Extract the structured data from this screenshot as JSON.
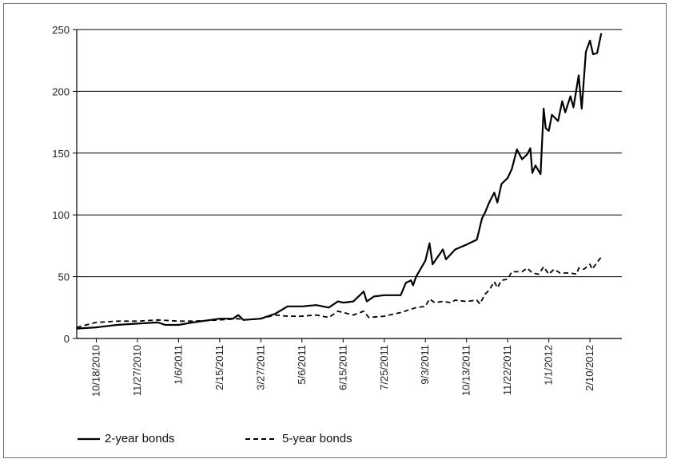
{
  "chart_data": {
    "type": "line",
    "title": "",
    "xlabel": "",
    "ylabel": "",
    "ylim": [
      0,
      250
    ],
    "yticks": [
      0,
      50,
      100,
      150,
      200,
      250
    ],
    "grid": "horizontal",
    "legend_placement": "bottom-left",
    "x_start": "2010-09-29",
    "x_end": "2012-03-12",
    "xtick_labels": [
      "10/18/2010",
      "11/27/2010",
      "1/6/2011",
      "2/15/2011",
      "3/27/2011",
      "5/6/2011",
      "6/15/2011",
      "7/25/2011",
      "9/3/2011",
      "10/13/2011",
      "11/22/2011",
      "1/1/2012",
      "2/10/2012"
    ],
    "xtick_dates": [
      "2010-10-18",
      "2010-11-27",
      "2011-01-06",
      "2011-02-15",
      "2011-03-27",
      "2011-05-06",
      "2011-06-15",
      "2011-07-25",
      "2011-09-03",
      "2011-10-13",
      "2011-11-22",
      "2012-01-01",
      "2012-02-10"
    ],
    "series": [
      {
        "name": "2-year bonds",
        "style": "solid",
        "color": "#000000",
        "points": [
          [
            "2010-09-29",
            8
          ],
          [
            "2010-10-18",
            9
          ],
          [
            "2010-11-07",
            11
          ],
          [
            "2010-11-27",
            12
          ],
          [
            "2010-12-17",
            13
          ],
          [
            "2010-12-24",
            11
          ],
          [
            "2011-01-06",
            11
          ],
          [
            "2011-01-20",
            13
          ],
          [
            "2011-02-15",
            16
          ],
          [
            "2011-02-28",
            16
          ],
          [
            "2011-03-05",
            19
          ],
          [
            "2011-03-10",
            15
          ],
          [
            "2011-03-27",
            16
          ],
          [
            "2011-04-10",
            20
          ],
          [
            "2011-04-22",
            26
          ],
          [
            "2011-05-06",
            26
          ],
          [
            "2011-05-20",
            27
          ],
          [
            "2011-06-01",
            25
          ],
          [
            "2011-06-10",
            30
          ],
          [
            "2011-06-15",
            29
          ],
          [
            "2011-06-25",
            30
          ],
          [
            "2011-07-05",
            38
          ],
          [
            "2011-07-08",
            30
          ],
          [
            "2011-07-15",
            34
          ],
          [
            "2011-07-25",
            35
          ],
          [
            "2011-08-10",
            35
          ],
          [
            "2011-08-15",
            45
          ],
          [
            "2011-08-20",
            47
          ],
          [
            "2011-08-22",
            43
          ],
          [
            "2011-08-25",
            50
          ],
          [
            "2011-09-03",
            63
          ],
          [
            "2011-09-07",
            77
          ],
          [
            "2011-09-10",
            60
          ],
          [
            "2011-09-20",
            72
          ],
          [
            "2011-09-23",
            64
          ],
          [
            "2011-10-02",
            72
          ],
          [
            "2011-10-13",
            76
          ],
          [
            "2011-10-23",
            80
          ],
          [
            "2011-10-28",
            97
          ],
          [
            "2011-10-31",
            102
          ],
          [
            "2011-11-04",
            110
          ],
          [
            "2011-11-09",
            118
          ],
          [
            "2011-11-12",
            110
          ],
          [
            "2011-11-16",
            125
          ],
          [
            "2011-11-22",
            130
          ],
          [
            "2011-11-26",
            137
          ],
          [
            "2011-12-01",
            153
          ],
          [
            "2011-12-06",
            145
          ],
          [
            "2011-12-11",
            149
          ],
          [
            "2011-12-14",
            154
          ],
          [
            "2011-12-16",
            134
          ],
          [
            "2011-12-19",
            140
          ],
          [
            "2011-12-24",
            133
          ],
          [
            "2011-12-27",
            186
          ],
          [
            "2011-12-29",
            170
          ],
          [
            "2012-01-01",
            168
          ],
          [
            "2012-01-04",
            181
          ],
          [
            "2012-01-10",
            176
          ],
          [
            "2012-01-14",
            192
          ],
          [
            "2012-01-17",
            183
          ],
          [
            "2012-01-22",
            196
          ],
          [
            "2012-01-25",
            187
          ],
          [
            "2012-01-30",
            213
          ],
          [
            "2012-02-02",
            186
          ],
          [
            "2012-02-06",
            232
          ],
          [
            "2012-02-10",
            241
          ],
          [
            "2012-02-13",
            230
          ],
          [
            "2012-02-17",
            231
          ],
          [
            "2012-02-21",
            247
          ]
        ]
      },
      {
        "name": "5-year bonds",
        "style": "dashed",
        "color": "#000000",
        "points": [
          [
            "2010-09-29",
            9
          ],
          [
            "2010-10-18",
            13
          ],
          [
            "2010-11-07",
            14
          ],
          [
            "2010-11-27",
            14
          ],
          [
            "2010-12-17",
            15
          ],
          [
            "2011-01-06",
            14
          ],
          [
            "2011-01-20",
            14
          ],
          [
            "2011-02-15",
            15
          ],
          [
            "2011-03-05",
            16
          ],
          [
            "2011-03-10",
            15
          ],
          [
            "2011-03-27",
            16
          ],
          [
            "2011-04-10",
            19
          ],
          [
            "2011-04-22",
            18
          ],
          [
            "2011-05-06",
            18
          ],
          [
            "2011-05-20",
            19
          ],
          [
            "2011-06-01",
            17
          ],
          [
            "2011-06-10",
            22
          ],
          [
            "2011-06-15",
            21
          ],
          [
            "2011-06-25",
            19
          ],
          [
            "2011-07-05",
            22
          ],
          [
            "2011-07-10",
            17
          ],
          [
            "2011-07-25",
            18
          ],
          [
            "2011-08-10",
            21
          ],
          [
            "2011-08-25",
            25
          ],
          [
            "2011-09-03",
            26
          ],
          [
            "2011-09-07",
            32
          ],
          [
            "2011-09-12",
            29
          ],
          [
            "2011-09-20",
            30
          ],
          [
            "2011-09-28",
            29
          ],
          [
            "2011-10-02",
            31
          ],
          [
            "2011-10-13",
            30
          ],
          [
            "2011-10-23",
            31
          ],
          [
            "2011-10-26",
            28
          ],
          [
            "2011-10-31",
            36
          ],
          [
            "2011-11-04",
            39
          ],
          [
            "2011-11-09",
            46
          ],
          [
            "2011-11-12",
            41
          ],
          [
            "2011-11-16",
            47
          ],
          [
            "2011-11-22",
            48
          ],
          [
            "2011-11-26",
            54
          ],
          [
            "2011-12-06",
            54
          ],
          [
            "2011-12-11",
            57
          ],
          [
            "2011-12-16",
            53
          ],
          [
            "2011-12-22",
            52
          ],
          [
            "2011-12-27",
            58
          ],
          [
            "2012-01-01",
            52
          ],
          [
            "2012-01-06",
            56
          ],
          [
            "2012-01-12",
            53
          ],
          [
            "2012-01-22",
            53
          ],
          [
            "2012-01-28",
            52
          ],
          [
            "2012-01-30",
            57
          ],
          [
            "2012-02-04",
            56
          ],
          [
            "2012-02-10",
            60
          ],
          [
            "2012-02-12",
            56
          ],
          [
            "2012-02-21",
            66
          ]
        ]
      }
    ]
  }
}
